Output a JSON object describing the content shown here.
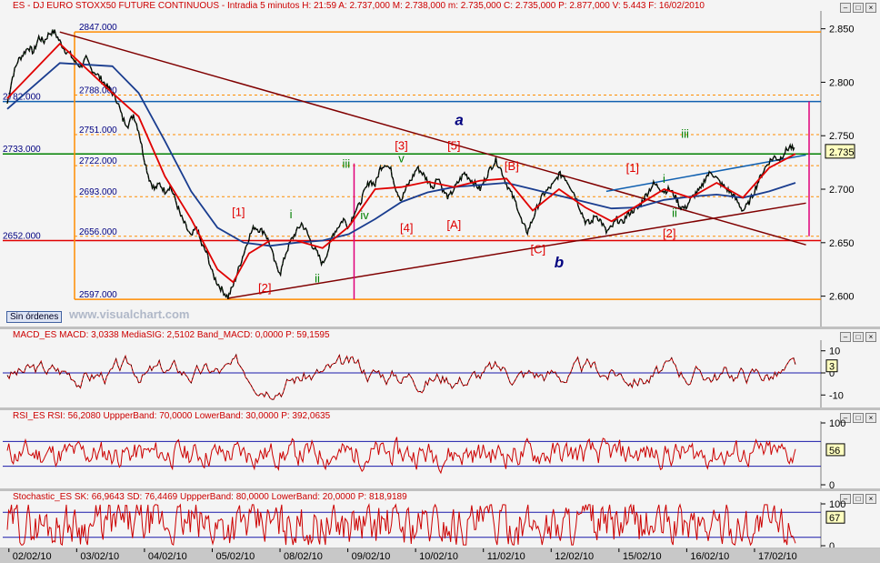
{
  "main": {
    "title": "ES - DJ EURO STOXX50 FUTURE CONTINUOUS - Intradia 5 minutos  H: 21:59  A: 2.737,000  M: 2.738,000  m: 2.735,000  C: 2.735,000  P: 2.877,000  V: 5.443  F: 16/02/2010",
    "last_price_label": "2.735",
    "sin_ordenes": "Sin órdenes",
    "watermark": "www.visualchart.com",
    "colors": {
      "price": "#000000",
      "sma_fast": "#e00000",
      "sma_slow": "#1a3d8f",
      "orange": "#ff8c00",
      "green": "#008000",
      "blue": "#1060b0",
      "maroon": "#800000",
      "magenta": "#e0007a"
    }
  },
  "chart_data": [
    {
      "type": "line",
      "title": "ES - DJ EURO STOXX50 FUTURE CONTINUOUS - Intradia 5 minutos",
      "ylim": [
        2.575,
        2.865
      ],
      "y_ticks": [
        "2.850",
        "2.800",
        "2.750",
        "2.700",
        "2.650",
        "2.600"
      ],
      "x_ticks": [
        "02/02/10",
        "03/02/10",
        "04/02/10",
        "05/02/10",
        "08/02/10",
        "09/02/10",
        "10/02/10",
        "11/02/10",
        "12/02/10",
        "15/02/10",
        "16/02/10",
        "17/02/10"
      ],
      "price_path": [
        [
          0,
          2.78
        ],
        [
          0.1,
          2.805
        ],
        [
          0.2,
          2.82
        ],
        [
          0.3,
          2.826
        ],
        [
          0.4,
          2.833
        ],
        [
          0.5,
          2.828
        ],
        [
          0.6,
          2.842
        ],
        [
          0.7,
          2.838
        ],
        [
          0.8,
          2.846
        ],
        [
          0.9,
          2.847
        ],
        [
          1.0,
          2.838
        ],
        [
          1.1,
          2.83
        ],
        [
          1.2,
          2.826
        ],
        [
          1.3,
          2.818
        ],
        [
          1.4,
          2.815
        ],
        [
          1.5,
          2.822
        ],
        [
          1.6,
          2.812
        ],
        [
          1.7,
          2.808
        ],
        [
          1.8,
          2.802
        ],
        [
          1.9,
          2.796
        ],
        [
          2.0,
          2.79
        ],
        [
          2.1,
          2.782
        ],
        [
          2.2,
          2.765
        ],
        [
          2.3,
          2.76
        ],
        [
          2.4,
          2.77
        ],
        [
          2.5,
          2.755
        ],
        [
          2.6,
          2.73
        ],
        [
          2.7,
          2.71
        ],
        [
          2.8,
          2.7
        ],
        [
          2.9,
          2.705
        ],
        [
          3.0,
          2.698
        ],
        [
          3.1,
          2.703
        ],
        [
          3.2,
          2.69
        ],
        [
          3.3,
          2.675
        ],
        [
          3.4,
          2.665
        ],
        [
          3.5,
          2.655
        ],
        [
          3.6,
          2.665
        ],
        [
          3.7,
          2.648
        ],
        [
          3.8,
          2.64
        ],
        [
          3.9,
          2.622
        ],
        [
          4.0,
          2.612
        ],
        [
          4.1,
          2.605
        ],
        [
          4.2,
          2.599
        ],
        [
          4.3,
          2.61
        ],
        [
          4.4,
          2.625
        ],
        [
          4.5,
          2.64
        ],
        [
          4.6,
          2.655
        ],
        [
          4.7,
          2.665
        ],
        [
          4.8,
          2.662
        ],
        [
          4.9,
          2.66
        ],
        [
          5.0,
          2.648
        ],
        [
          5.1,
          2.63
        ],
        [
          5.2,
          2.622
        ],
        [
          5.3,
          2.64
        ],
        [
          5.4,
          2.652
        ],
        [
          5.5,
          2.66
        ],
        [
          5.6,
          2.668
        ],
        [
          5.7,
          2.66
        ],
        [
          5.8,
          2.648
        ],
        [
          5.9,
          2.64
        ],
        [
          6.0,
          2.63
        ],
        [
          6.1,
          2.642
        ],
        [
          6.2,
          2.658
        ],
        [
          6.3,
          2.665
        ],
        [
          6.4,
          2.672
        ],
        [
          6.5,
          2.665
        ],
        [
          6.6,
          2.678
        ],
        [
          6.7,
          2.685
        ],
        [
          6.8,
          2.698
        ],
        [
          6.9,
          2.708
        ],
        [
          7.0,
          2.704
        ],
        [
          7.1,
          2.72
        ],
        [
          7.2,
          2.724
        ],
        [
          7.3,
          2.718
        ],
        [
          7.4,
          2.7
        ],
        [
          7.5,
          2.69
        ],
        [
          7.6,
          2.702
        ],
        [
          7.7,
          2.71
        ],
        [
          7.8,
          2.72
        ],
        [
          7.9,
          2.715
        ],
        [
          8.0,
          2.708
        ],
        [
          8.1,
          2.702
        ],
        [
          8.2,
          2.712
        ],
        [
          8.3,
          2.698
        ],
        [
          8.4,
          2.692
        ],
        [
          8.5,
          2.7
        ],
        [
          8.6,
          2.708
        ],
        [
          8.7,
          2.715
        ],
        [
          8.8,
          2.71
        ],
        [
          8.9,
          2.705
        ],
        [
          9.0,
          2.7
        ],
        [
          9.1,
          2.71
        ],
        [
          9.2,
          2.72
        ],
        [
          9.3,
          2.727
        ],
        [
          9.4,
          2.718
        ],
        [
          9.5,
          2.705
        ],
        [
          9.6,
          2.695
        ],
        [
          9.7,
          2.685
        ],
        [
          9.8,
          2.668
        ],
        [
          9.9,
          2.66
        ],
        [
          10.0,
          2.672
        ],
        [
          10.1,
          2.685
        ],
        [
          10.2,
          2.695
        ],
        [
          10.3,
          2.7
        ],
        [
          10.4,
          2.705
        ],
        [
          10.5,
          2.714
        ],
        [
          10.6,
          2.712
        ],
        [
          10.7,
          2.704
        ],
        [
          10.8,
          2.695
        ],
        [
          10.9,
          2.682
        ],
        [
          11.0,
          2.67
        ],
        [
          11.1,
          2.668
        ],
        [
          11.2,
          2.676
        ],
        [
          11.3,
          2.67
        ],
        [
          11.4,
          2.66
        ],
        [
          11.5,
          2.664
        ],
        [
          11.6,
          2.672
        ],
        [
          11.7,
          2.668
        ],
        [
          11.8,
          2.676
        ],
        [
          11.9,
          2.68
        ],
        [
          12.0,
          2.682
        ],
        [
          12.1,
          2.69
        ],
        [
          12.2,
          2.698
        ],
        [
          12.3,
          2.705
        ],
        [
          12.4,
          2.702
        ],
        [
          12.5,
          2.698
        ],
        [
          12.6,
          2.7
        ],
        [
          12.7,
          2.694
        ],
        [
          12.8,
          2.684
        ],
        [
          12.9,
          2.682
        ],
        [
          13.0,
          2.69
        ],
        [
          13.1,
          2.696
        ],
        [
          13.2,
          2.7
        ],
        [
          13.3,
          2.712
        ],
        [
          13.4,
          2.716
        ],
        [
          13.5,
          2.71
        ],
        [
          13.6,
          2.704
        ],
        [
          13.7,
          2.7
        ],
        [
          13.8,
          2.695
        ],
        [
          13.9,
          2.688
        ],
        [
          14.0,
          2.68
        ],
        [
          14.1,
          2.686
        ],
        [
          14.2,
          2.696
        ],
        [
          14.3,
          2.708
        ],
        [
          14.4,
          2.718
        ],
        [
          14.5,
          2.726
        ],
        [
          14.6,
          2.73
        ],
        [
          14.7,
          2.728
        ],
        [
          14.8,
          2.735
        ],
        [
          14.9,
          2.74
        ],
        [
          15.0,
          2.735
        ]
      ],
      "sma_fast_path": [
        [
          0,
          2.785
        ],
        [
          1,
          2.836
        ],
        [
          2,
          2.79
        ],
        [
          2.5,
          2.768
        ],
        [
          3,
          2.712
        ],
        [
          3.5,
          2.672
        ],
        [
          4,
          2.625
        ],
        [
          4.3,
          2.613
        ],
        [
          4.6,
          2.64
        ],
        [
          5,
          2.652
        ],
        [
          5.5,
          2.652
        ],
        [
          6,
          2.645
        ],
        [
          6.5,
          2.665
        ],
        [
          7,
          2.7
        ],
        [
          7.5,
          2.702
        ],
        [
          8,
          2.707
        ],
        [
          8.5,
          2.702
        ],
        [
          9,
          2.708
        ],
        [
          9.5,
          2.71
        ],
        [
          10,
          2.68
        ],
        [
          10.5,
          2.7
        ],
        [
          11,
          2.683
        ],
        [
          11.5,
          2.67
        ],
        [
          12,
          2.685
        ],
        [
          12.5,
          2.7
        ],
        [
          13,
          2.692
        ],
        [
          13.5,
          2.706
        ],
        [
          14,
          2.692
        ],
        [
          14.5,
          2.72
        ],
        [
          15,
          2.733
        ]
      ],
      "sma_slow_path": [
        [
          0,
          2.775
        ],
        [
          1,
          2.818
        ],
        [
          2,
          2.815
        ],
        [
          2.5,
          2.79
        ],
        [
          3,
          2.745
        ],
        [
          3.5,
          2.698
        ],
        [
          4,
          2.664
        ],
        [
          4.5,
          2.65
        ],
        [
          5,
          2.647
        ],
        [
          5.5,
          2.65
        ],
        [
          6,
          2.652
        ],
        [
          6.5,
          2.658
        ],
        [
          7,
          2.672
        ],
        [
          7.5,
          2.688
        ],
        [
          8,
          2.697
        ],
        [
          8.5,
          2.702
        ],
        [
          9,
          2.704
        ],
        [
          9.5,
          2.706
        ],
        [
          10,
          2.7
        ],
        [
          10.5,
          2.694
        ],
        [
          11,
          2.688
        ],
        [
          11.5,
          2.682
        ],
        [
          12,
          2.683
        ],
        [
          12.5,
          2.69
        ],
        [
          13,
          2.693
        ],
        [
          13.5,
          2.695
        ],
        [
          14,
          2.692
        ],
        [
          14.5,
          2.698
        ],
        [
          15,
          2.706
        ]
      ],
      "horizontal_lines": [
        {
          "label": "2847.000",
          "value": 2.847,
          "color": "orange"
        },
        {
          "label": "2788.000",
          "value": 2.788,
          "color": "orange_dash"
        },
        {
          "label": "2751.000",
          "value": 2.751,
          "color": "orange_dash"
        },
        {
          "label": "2722.000",
          "value": 2.722,
          "color": "orange_dash"
        },
        {
          "label": "2693.000",
          "value": 2.693,
          "color": "orange_dash"
        },
        {
          "label": "2656.000",
          "value": 2.656,
          "color": "orange_dash"
        },
        {
          "label": "2597.000",
          "value": 2.597,
          "color": "orange"
        },
        {
          "label": "2782.000",
          "value": 2.782,
          "color": "blue"
        },
        {
          "label": "2733.000",
          "value": 2.733,
          "color": "green"
        },
        {
          "label": "2652.000",
          "value": 2.652,
          "color": "red"
        }
      ],
      "wave_labels": [
        {
          "text": "[1]",
          "x": 4.4,
          "y": 2.675,
          "color": "red"
        },
        {
          "text": "[2]",
          "x": 4.9,
          "y": 2.604,
          "color": "red"
        },
        {
          "text": "i",
          "x": 5.4,
          "y": 2.673,
          "color": "green"
        },
        {
          "text": "ii",
          "x": 5.9,
          "y": 2.613,
          "color": "green"
        },
        {
          "text": "iii",
          "x": 6.45,
          "y": 2.72,
          "color": "green"
        },
        {
          "text": "iv",
          "x": 6.8,
          "y": 2.672,
          "color": "green"
        },
        {
          "text": "v",
          "x": 7.5,
          "y": 2.725,
          "color": "green"
        },
        {
          "text": "[3]",
          "x": 7.5,
          "y": 2.737,
          "color": "red"
        },
        {
          "text": "[4]",
          "x": 7.6,
          "y": 2.66,
          "color": "red"
        },
        {
          "text": "[5]",
          "x": 8.5,
          "y": 2.737,
          "color": "red"
        },
        {
          "text": "[A]",
          "x": 8.5,
          "y": 2.663,
          "color": "red"
        },
        {
          "text": "a",
          "x": 8.6,
          "y": 2.76,
          "color": "navy"
        },
        {
          "text": "[B]",
          "x": 9.6,
          "y": 2.718,
          "color": "red"
        },
        {
          "text": "[C]",
          "x": 10.1,
          "y": 2.64,
          "color": "red"
        },
        {
          "text": "b",
          "x": 10.5,
          "y": 2.627,
          "color": "navy"
        },
        {
          "text": "[1]",
          "x": 11.9,
          "y": 2.716,
          "color": "red"
        },
        {
          "text": "i",
          "x": 12.5,
          "y": 2.706,
          "color": "green"
        },
        {
          "text": "[2]",
          "x": 12.6,
          "y": 2.655,
          "color": "red"
        },
        {
          "text": "ii",
          "x": 12.7,
          "y": 2.674,
          "color": "green"
        },
        {
          "text": "iii",
          "x": 12.9,
          "y": 2.748,
          "color": "green"
        }
      ]
    },
    {
      "type": "line",
      "title": "MACD_ES  MACD: 3,0338  MediaSIG: 2,5102  Band_MACD: 0,0000  P: 59,1595",
      "series": [
        {
          "name": "MACD",
          "last": 3
        }
      ],
      "ylim": [
        -14,
        14
      ],
      "y_ticks": [
        "10",
        "0",
        "-10"
      ],
      "last_label": "3",
      "band": 0
    },
    {
      "type": "line",
      "title": "RSI_ES  RSI: 56,2080  UppperBand: 70,0000  LowerBand: 30,0000  P: 392,0635",
      "series": [
        {
          "name": "RSI",
          "last": 56
        }
      ],
      "ylim": [
        0,
        100
      ],
      "y_ticks": [
        "100",
        "0"
      ],
      "last_label": "56",
      "bands": [
        70,
        30
      ]
    },
    {
      "type": "line",
      "title": "Stochastic_ES  SK: 66,9643  SD: 76,4469  UppperBand: 80,0000  LowerBand: 20,0000  P: 818,9189",
      "series": [
        {
          "name": "SK",
          "last": 67
        }
      ],
      "ylim": [
        0,
        100
      ],
      "y_ticks": [
        "100",
        "0"
      ],
      "last_label": "67",
      "bands": [
        80,
        20
      ]
    }
  ]
}
